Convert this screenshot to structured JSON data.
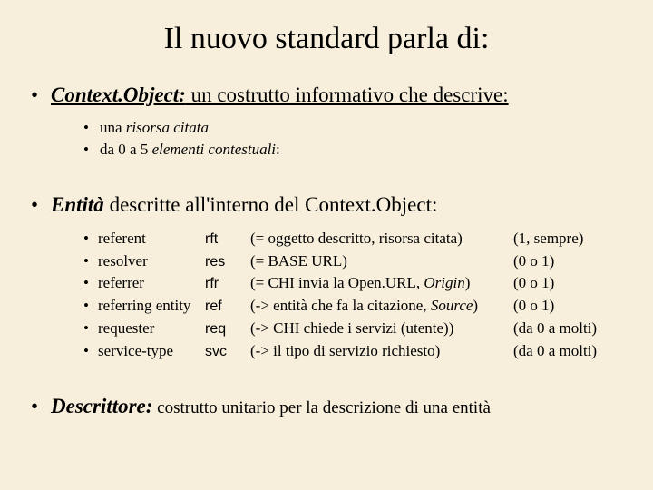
{
  "title": "Il nuovo standard parla di:",
  "sec1": {
    "lead_bi": "Context.Object:",
    "lead_rest": " un costrutto informativo che descrive:",
    "sub1_pre": "una ",
    "sub1_it": "risorsa citata",
    "sub2_pre": "da 0 a 5 ",
    "sub2_it": "elementi contestuali",
    "sub2_post": ":"
  },
  "sec2": {
    "lead_bi": "Entità",
    "lead_rest": " descritte all'interno del Context.Object:",
    "rows": [
      {
        "term": "referent",
        "abbr": "rft",
        "desc": "(= oggetto descritto, risorsa citata)",
        "card": "(1, sempre)"
      },
      {
        "term": "resolver",
        "abbr": "res",
        "desc": "(= BASE URL)",
        "card": "(0 o 1)"
      },
      {
        "term": "referrer",
        "abbr": "rfr",
        "desc_pre": "(= CHI invia la Open.URL, ",
        "desc_it": "Origin",
        "desc_post": ")",
        "card": "(0 o 1)"
      },
      {
        "term": "referring entity",
        "abbr": "ref",
        "desc_pre": "(-> entità che fa la citazione, ",
        "desc_it": "Source",
        "desc_post": ")",
        "card": "(0 o 1)"
      },
      {
        "term": "requester",
        "abbr": "req",
        "desc": "(-> CHI chiede i servizi (utente))",
        "card": "(da 0 a molti)"
      },
      {
        "term": "service-type",
        "abbr": "svc",
        "desc": "(-> il tipo di servizio richiesto)",
        "card": "(da 0 a molti)"
      }
    ]
  },
  "sec3": {
    "lead_bi": "Descrittore:",
    "lead_rest": " costrutto unitario per la descrizione di una entità"
  }
}
